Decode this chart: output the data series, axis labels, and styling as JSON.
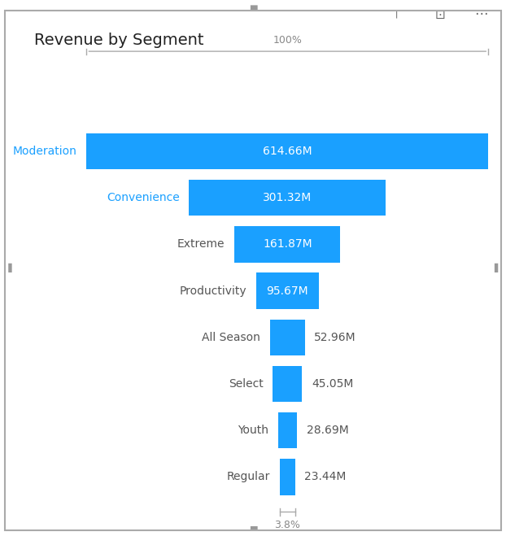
{
  "title": "Revenue by Segment",
  "categories": [
    "Moderation",
    "Convenience",
    "Extreme",
    "Productivity",
    "All Season",
    "Select",
    "Youth",
    "Regular"
  ],
  "values": [
    614.66,
    301.32,
    161.87,
    95.67,
    52.96,
    45.05,
    28.69,
    23.44
  ],
  "labels": [
    "614.66M",
    "301.32M",
    "161.87M",
    "95.67M",
    "52.96M",
    "45.05M",
    "28.69M",
    "23.44M"
  ],
  "top_pct": "100%",
  "bottom_pct": "3.8%",
  "bar_color": "#1aA0FF",
  "label_inside_color": "#ffffff",
  "label_outside_color": "#555555",
  "category_color_highlight": [
    "#1aA0FF",
    "#1aA0FF",
    "#555555",
    "#555555",
    "#555555",
    "#555555",
    "#555555",
    "#555555"
  ],
  "bg_color": "#ffffff",
  "border_color": "#aaaaaa",
  "title_fontsize": 14,
  "label_fontsize": 10,
  "cat_fontsize": 10,
  "pct_fontsize": 9
}
